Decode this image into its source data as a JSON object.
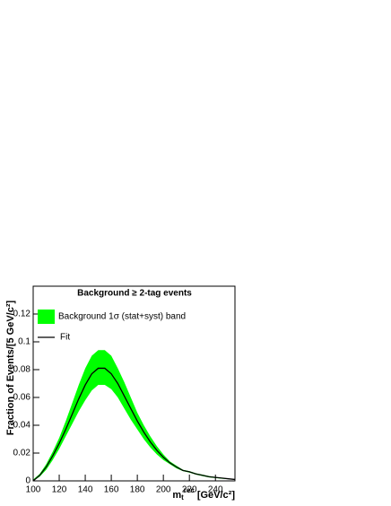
{
  "chart_data": {
    "type": "band-line",
    "title": "Background ≥ 2-tag events",
    "y_label": "Fraction of Events/[5 GeV/c²]",
    "x_label": {
      "base": "m",
      "sub": "t",
      "sup": "rec",
      "unit": "[GeV/c²]"
    },
    "x": [
      100,
      105,
      110,
      115,
      120,
      125,
      130,
      135,
      140,
      145,
      150,
      155,
      160,
      165,
      170,
      175,
      180,
      185,
      190,
      195,
      200,
      205,
      210,
      215,
      220,
      225,
      230,
      235,
      240,
      245,
      250,
      255
    ],
    "series": [
      {
        "name": "Background 1σ (stat+syst) band",
        "color": "#00ff00",
        "high": [
          0.001,
          0.005,
          0.012,
          0.021,
          0.031,
          0.043,
          0.056,
          0.069,
          0.081,
          0.09,
          0.094,
          0.094,
          0.09,
          0.081,
          0.071,
          0.06,
          0.049,
          0.04,
          0.032,
          0.025,
          0.019,
          0.014,
          0.011,
          0.008,
          0.007,
          0.0055,
          0.0045,
          0.0035,
          0.0028,
          0.0022,
          0.0017,
          0.0012
        ],
        "low": [
          0,
          0.003,
          0.008,
          0.015,
          0.023,
          0.032,
          0.041,
          0.05,
          0.058,
          0.065,
          0.069,
          0.069,
          0.066,
          0.06,
          0.052,
          0.044,
          0.037,
          0.03,
          0.024,
          0.019,
          0.015,
          0.012,
          0.009,
          0.007,
          0.006,
          0.0045,
          0.0035,
          0.0025,
          0.002,
          0.0015,
          0.0012,
          0.0008
        ]
      },
      {
        "name": "Fit",
        "color": "#000000",
        "values": [
          0,
          0.004,
          0.01,
          0.018,
          0.027,
          0.037,
          0.048,
          0.059,
          0.069,
          0.077,
          0.081,
          0.081,
          0.077,
          0.07,
          0.061,
          0.052,
          0.043,
          0.035,
          0.028,
          0.022,
          0.017,
          0.013,
          0.01,
          0.0075,
          0.0065,
          0.005,
          0.004,
          0.003,
          0.0025,
          0.002,
          0.0015,
          0.001
        ]
      }
    ],
    "xlim": [
      100,
      255
    ],
    "xticks": [
      100,
      120,
      140,
      160,
      180,
      200,
      220,
      240
    ],
    "ylim": [
      0,
      0.14
    ],
    "yticks": [
      0,
      0.02,
      0.04,
      0.06,
      0.08,
      0.1,
      0.12
    ]
  }
}
